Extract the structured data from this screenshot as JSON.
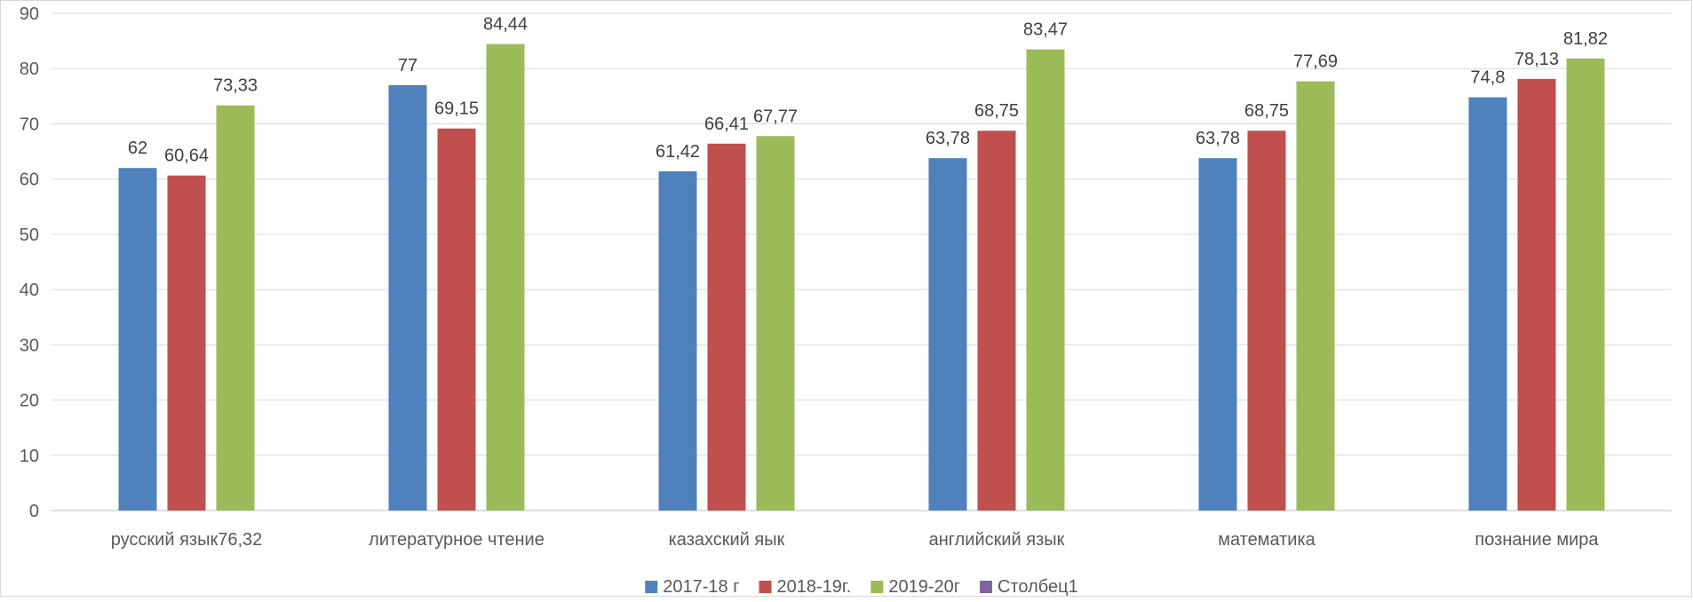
{
  "chart_data": {
    "type": "bar",
    "title": "",
    "xlabel": "",
    "ylabel": "",
    "ylim": [
      0,
      90
    ],
    "yticks": [
      0,
      10,
      20,
      30,
      40,
      50,
      60,
      70,
      80,
      90
    ],
    "grid": true,
    "legend_position": "bottom",
    "categories": [
      "русский язык76,32",
      "литературное чтение",
      "казахский яык",
      "английский язык",
      "математика",
      "познание мира"
    ],
    "series": [
      {
        "name": "2017-18 г",
        "color": "#4f81bd",
        "values": [
          62,
          77,
          61.42,
          63.78,
          63.78,
          74.8
        ],
        "labels": [
          "62",
          "77",
          "61,42",
          "63,78",
          "63,78",
          "74,8"
        ]
      },
      {
        "name": "2018-19г.",
        "color": "#c0504d",
        "values": [
          60.64,
          69.15,
          66.41,
          68.75,
          68.75,
          78.13
        ],
        "labels": [
          "60,64",
          "69,15",
          "66,41",
          "68,75",
          "68,75",
          "78,13"
        ]
      },
      {
        "name": "2019-20г",
        "color": "#9bbb59",
        "values": [
          73.33,
          84.44,
          67.77,
          83.47,
          77.69,
          81.82
        ],
        "labels": [
          "73,33",
          "84,44",
          "67,77",
          "83,47",
          "77,69",
          "81,82"
        ]
      },
      {
        "name": "Столбец1",
        "color": "#8064a2",
        "values": [
          null,
          null,
          null,
          null,
          null,
          null
        ],
        "labels": [
          "",
          "",
          "",
          "",
          "",
          ""
        ]
      }
    ]
  }
}
